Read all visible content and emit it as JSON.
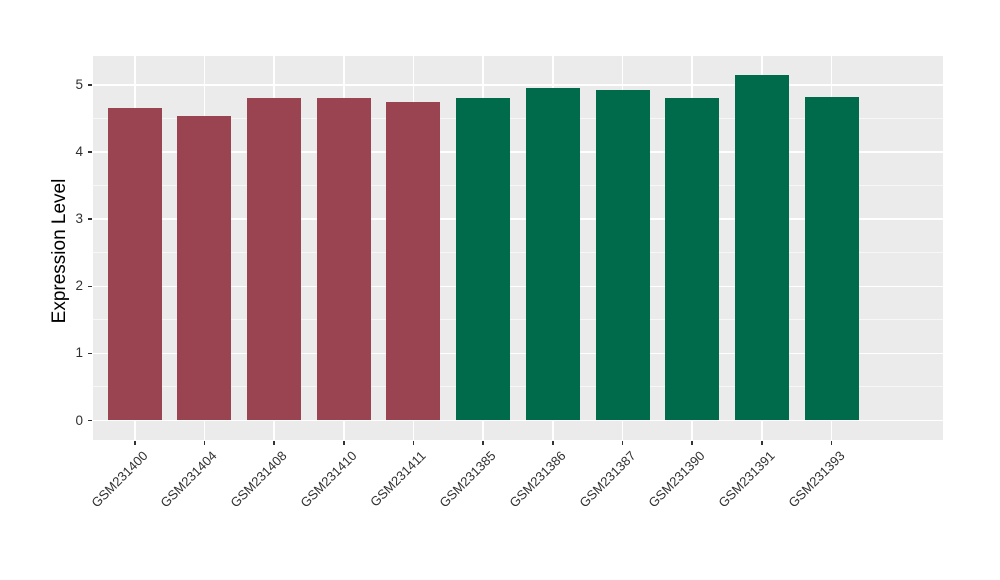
{
  "chart_data": {
    "type": "bar",
    "title": "",
    "ylabel": "Expression Level",
    "xlabel": "",
    "categories": [
      "GSM231400",
      "GSM231404",
      "GSM231408",
      "GSM231410",
      "GSM231411",
      "GSM231385",
      "GSM231386",
      "GSM231387",
      "GSM231390",
      "GSM231391",
      "GSM231393"
    ],
    "values": [
      4.65,
      4.54,
      4.8,
      4.8,
      4.74,
      4.8,
      4.96,
      4.93,
      4.8,
      5.15,
      4.82
    ],
    "bar_colors": [
      "#9A4452",
      "#9A4452",
      "#9A4452",
      "#9A4452",
      "#9A4452",
      "#006B4A",
      "#006B4A",
      "#006B4A",
      "#006B4A",
      "#006B4A",
      "#006B4A"
    ],
    "group_colors": {
      "maroon_group": "#9A4452",
      "green_group": "#006B4A"
    },
    "yticks": [
      "0",
      "1",
      "2",
      "3",
      "4",
      "5"
    ],
    "ytick_values": [
      0,
      1,
      2,
      3,
      4,
      5
    ],
    "y_minor_ticks": [
      0.5,
      1.5,
      2.5,
      3.5,
      4.5
    ],
    "ylim": [
      -0.29,
      5.43
    ],
    "legend": "none",
    "grid": {
      "horizontal": "major+minor",
      "vertical": "major-at-categories",
      "grid_on": true
    },
    "panel_bg": "#EBEBEB",
    "grid_color": "#FFFFFF",
    "axis_text_color": "#303030",
    "tick_mark_color": "#333333",
    "background": "#FFFFFF"
  }
}
